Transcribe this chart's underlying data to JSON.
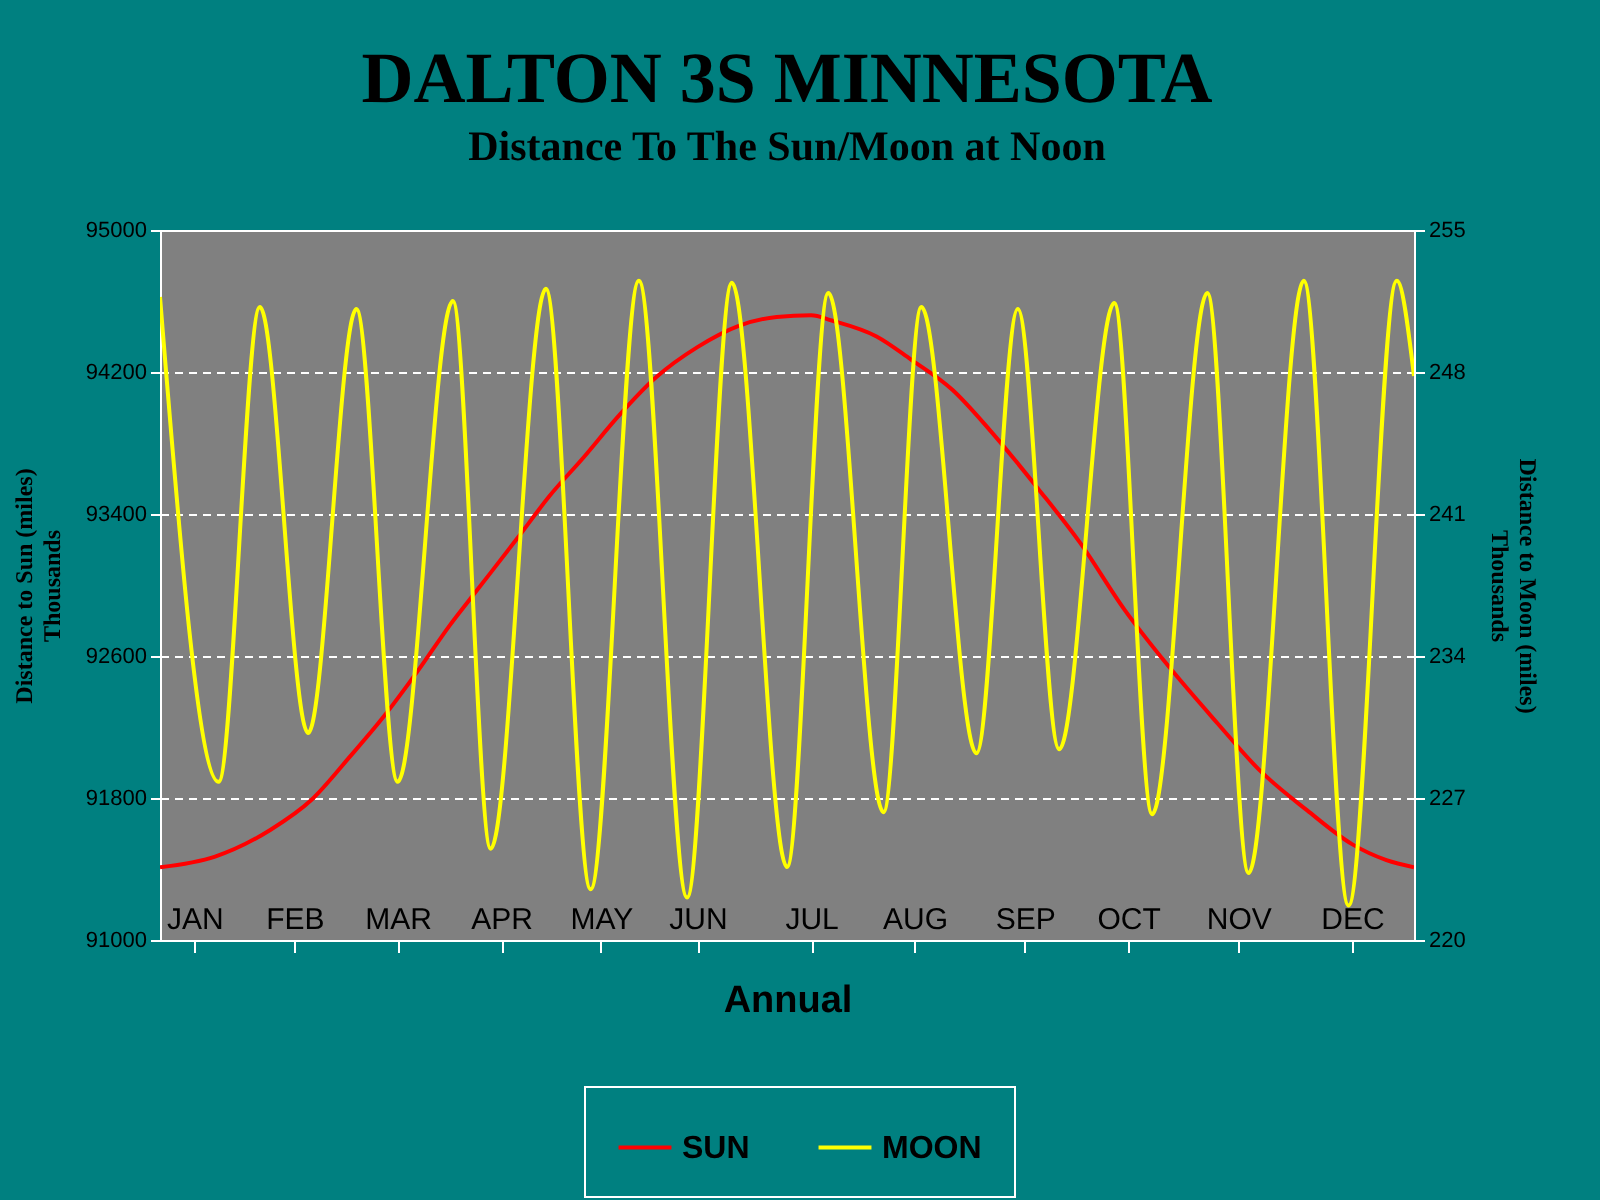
{
  "chart_data": {
    "type": "line",
    "title": "DALTON 3S MINNESOTA",
    "subtitle": "Distance To The Sun/Moon at Noon",
    "xlabel": "Annual",
    "ylabel": "Distance to Sun (miles)\nThousands",
    "y2label": "Distance to Moon (miles)\nThousands",
    "xlim": [
      "--01-01",
      "--12-31"
    ],
    "xticks": [
      {
        "value": "--01-11",
        "label": "JAN"
      },
      {
        "value": "--02-09",
        "label": "FEB"
      },
      {
        "value": "--03-11",
        "label": "MAR"
      },
      {
        "value": "--04-10",
        "label": "APR"
      },
      {
        "value": "--05-09",
        "label": "MAY"
      },
      {
        "value": "--06-06",
        "label": "JUN"
      },
      {
        "value": "--07-09",
        "label": "JUL"
      },
      {
        "value": "--08-08",
        "label": "AUG"
      },
      {
        "value": "--09-09",
        "label": "SEP"
      },
      {
        "value": "--10-09",
        "label": "OCT"
      },
      {
        "value": "--11-10",
        "label": "NOV"
      },
      {
        "value": "--12-13",
        "label": "DEC"
      }
    ],
    "ylim": [
      91000,
      95000
    ],
    "yticks": [
      91000,
      91800,
      92600,
      93400,
      94200,
      95000
    ],
    "y2lim": [
      220,
      255
    ],
    "y2ticks": [
      220,
      227,
      234,
      241,
      248,
      255
    ],
    "grid": "y",
    "legend": "bottom",
    "line_style": "solid",
    "series": [
      {
        "name": "SUN",
        "color": "#ff0000",
        "x": [
          "--01-01",
          "--01-17",
          "--02-02",
          "--02-14",
          "--02-25",
          "--03-07",
          "--03-17",
          "--03-26",
          "--04-03",
          "--04-15",
          "--04-24",
          "--05-04",
          "--05-14",
          "--05-25",
          "--06-06",
          "--06-18",
          "--06-29",
          "--07-09",
          "--07-15",
          "--07-28",
          "--08-07",
          "--08-19",
          "--08-30",
          "--09-13",
          "--09-25",
          "--10-08",
          "--10-20",
          "--11-04",
          "--11-16",
          "--11-30",
          "--12-13",
          "--12-23",
          "--12-31"
        ],
        "values": [
          91410,
          91470,
          91620,
          91790,
          92030,
          92260,
          92520,
          92770,
          92970,
          93270,
          93500,
          93720,
          93950,
          94170,
          94340,
          94460,
          94510,
          94520,
          94490,
          94400,
          94270,
          94100,
          93870,
          93540,
          93240,
          92860,
          92560,
          92220,
          91960,
          91730,
          91540,
          91450,
          91410
        ]
      },
      {
        "name": "MOON",
        "color": "#ffff00",
        "axis": "y2",
        "x": [
          "--01-01",
          "--01-18",
          "--01-30",
          "--02-13",
          "--02-27",
          "--03-11",
          "--03-27",
          "--04-07",
          "--04-23",
          "--05-06",
          "--05-20",
          "--06-03",
          "--06-16",
          "--07-02",
          "--07-14",
          "--07-30",
          "--08-10",
          "--08-26",
          "--09-07",
          "--09-19",
          "--10-05",
          "--10-16",
          "--11-01",
          "--11-13",
          "--11-29",
          "--12-12",
          "--12-26",
          "--12-31"
        ],
        "values": [
          251.7,
          227.8,
          251.2,
          230.2,
          251.1,
          227.8,
          251.5,
          224.5,
          252.1,
          222.5,
          252.5,
          222.1,
          252.4,
          223.6,
          251.9,
          226.3,
          251.2,
          229.2,
          251.1,
          229.4,
          251.4,
          226.2,
          251.9,
          223.3,
          252.5,
          221.7,
          252.5,
          247.8
        ]
      }
    ]
  }
}
